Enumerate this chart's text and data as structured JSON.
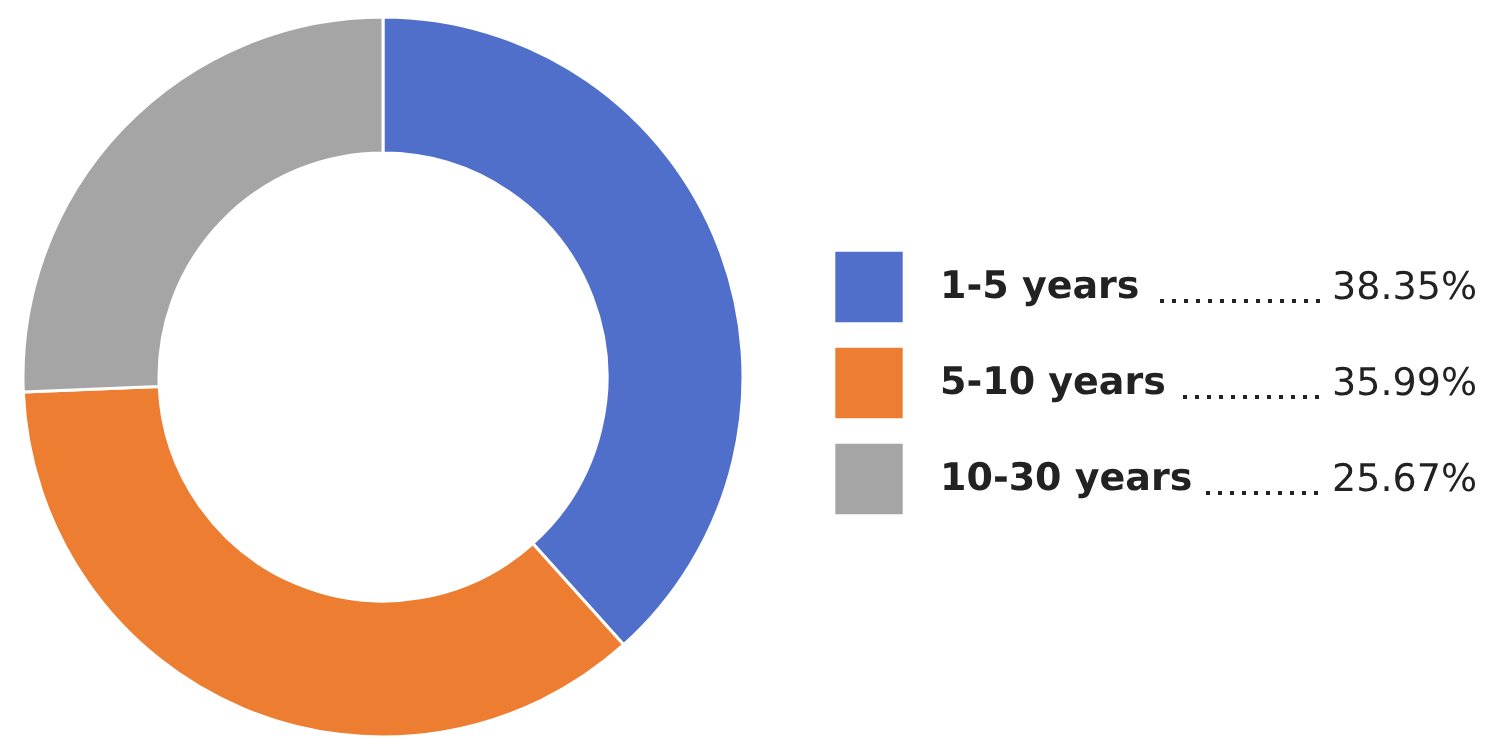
{
  "chart_data": {
    "type": "donut",
    "categories": [
      "1-5 years",
      "5-10 years",
      "10-30 years"
    ],
    "values": [
      38.35,
      35.99,
      25.67
    ],
    "colors": [
      "#4f6fca",
      "#ed7d31",
      "#a5a5a5"
    ],
    "value_labels": [
      "38.35%",
      "35.99%",
      "25.67%"
    ],
    "legend": "right"
  }
}
